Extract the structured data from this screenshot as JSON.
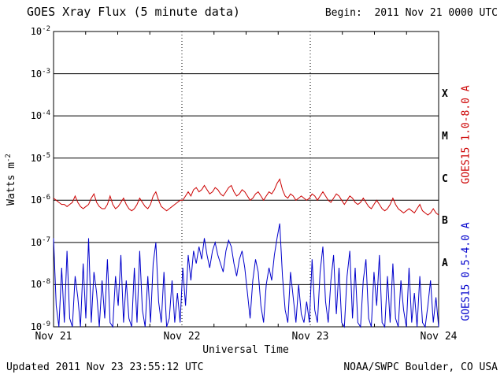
{
  "header": {
    "title": "GOES Xray Flux (5 minute data)",
    "begin_label": "Begin:  2011 Nov 21 0000 UTC"
  },
  "footer": {
    "updated": "Updated 2011 Nov 23 23:55:12 UTC",
    "source": "NOAA/SWPC Boulder, CO USA"
  },
  "chart_data": {
    "type": "line",
    "title": "GOES Xray Flux (5 minute data)",
    "xlabel": "Universal Time",
    "ylabel": "Watts m^-2",
    "y_scale": "log10",
    "ylim_log10": [
      -9,
      -2
    ],
    "y_ticks_log10": [
      -2,
      -3,
      -4,
      -5,
      -6,
      -7,
      -8,
      -9
    ],
    "xlim_days": [
      0,
      3
    ],
    "x_ticks": [
      "Nov 21",
      "Nov 22",
      "Nov 23",
      "Nov 24"
    ],
    "x_tick_days": [
      0,
      1,
      2,
      3
    ],
    "grid": {
      "horizontal": "solid",
      "day_boundaries": "dotted"
    },
    "class_bands": [
      {
        "label": "X",
        "log10_mid": -3.5
      },
      {
        "label": "M",
        "log10_mid": -4.5
      },
      {
        "label": "C",
        "log10_mid": -5.5
      },
      {
        "label": "B",
        "log10_mid": -6.5
      },
      {
        "label": "A",
        "log10_mid": -7.5
      }
    ],
    "series": [
      {
        "name": "GOES15 1.0-8.0 A",
        "color": "#cc0000",
        "sample_interval_hours": 0.5,
        "y_log10": [
          -5.95,
          -6.0,
          -6.05,
          -6.1,
          -6.1,
          -6.15,
          -6.1,
          -6.05,
          -5.9,
          -6.05,
          -6.15,
          -6.2,
          -6.15,
          -6.1,
          -5.95,
          -5.85,
          -6.05,
          -6.15,
          -6.2,
          -6.2,
          -6.1,
          -5.9,
          -6.1,
          -6.2,
          -6.15,
          -6.05,
          -5.95,
          -6.1,
          -6.2,
          -6.25,
          -6.2,
          -6.1,
          -5.95,
          -6.05,
          -6.15,
          -6.2,
          -6.1,
          -5.9,
          -5.8,
          -6.0,
          -6.15,
          -6.2,
          -6.25,
          -6.2,
          -6.15,
          -6.1,
          -6.05,
          -6.0,
          -6.0,
          -5.9,
          -5.8,
          -5.9,
          -5.75,
          -5.7,
          -5.8,
          -5.75,
          -5.65,
          -5.75,
          -5.85,
          -5.8,
          -5.7,
          -5.75,
          -5.85,
          -5.9,
          -5.8,
          -5.7,
          -5.65,
          -5.8,
          -5.9,
          -5.85,
          -5.75,
          -5.8,
          -5.9,
          -6.0,
          -5.95,
          -5.85,
          -5.8,
          -5.9,
          -6.0,
          -5.9,
          -5.8,
          -5.85,
          -5.75,
          -5.6,
          -5.5,
          -5.75,
          -5.9,
          -5.95,
          -5.85,
          -5.9,
          -6.0,
          -5.95,
          -5.9,
          -5.95,
          -6.0,
          -5.95,
          -5.85,
          -5.9,
          -6.0,
          -5.9,
          -5.8,
          -5.9,
          -6.0,
          -6.05,
          -5.95,
          -5.85,
          -5.9,
          -6.0,
          -6.1,
          -6.0,
          -5.9,
          -5.95,
          -6.05,
          -6.1,
          -6.05,
          -5.95,
          -6.05,
          -6.15,
          -6.2,
          -6.1,
          -6.0,
          -6.1,
          -6.2,
          -6.25,
          -6.2,
          -6.1,
          -5.95,
          -6.1,
          -6.2,
          -6.25,
          -6.3,
          -6.25,
          -6.2,
          -6.25,
          -6.3,
          -6.2,
          -6.1,
          -6.25,
          -6.3,
          -6.35,
          -6.3,
          -6.2,
          -6.3,
          -6.35
        ]
      },
      {
        "name": "GOES15 0.5-4.0 A",
        "color": "#0000cc",
        "sample_interval_hours": 0.5,
        "y_log10": [
          -6.9,
          -8.5,
          -9.0,
          -7.6,
          -8.9,
          -7.2,
          -8.8,
          -9.0,
          -7.8,
          -8.3,
          -9.0,
          -7.5,
          -8.8,
          -6.9,
          -8.9,
          -7.7,
          -8.2,
          -9.0,
          -7.9,
          -8.8,
          -7.4,
          -8.9,
          -9.0,
          -7.8,
          -8.5,
          -7.3,
          -8.9,
          -7.9,
          -8.8,
          -9.0,
          -7.6,
          -8.9,
          -7.2,
          -8.6,
          -9.0,
          -7.8,
          -8.9,
          -7.5,
          -7.0,
          -8.4,
          -8.9,
          -7.7,
          -9.0,
          -8.8,
          -7.9,
          -8.9,
          -8.2,
          -8.9,
          -7.6,
          -8.5,
          -7.3,
          -7.9,
          -7.2,
          -7.5,
          -7.1,
          -7.4,
          -6.9,
          -7.3,
          -7.6,
          -7.2,
          -7.0,
          -7.3,
          -7.5,
          -7.7,
          -7.2,
          -6.95,
          -7.1,
          -7.5,
          -7.8,
          -7.4,
          -7.2,
          -7.6,
          -8.2,
          -8.8,
          -7.9,
          -7.4,
          -7.7,
          -8.5,
          -8.9,
          -8.0,
          -7.6,
          -7.9,
          -7.3,
          -6.9,
          -6.55,
          -7.8,
          -8.6,
          -8.9,
          -7.7,
          -8.3,
          -8.9,
          -8.0,
          -8.7,
          -8.9,
          -8.4,
          -8.9,
          -7.4,
          -8.6,
          -8.9,
          -7.7,
          -7.1,
          -8.4,
          -8.9,
          -7.9,
          -7.3,
          -8.7,
          -7.6,
          -8.9,
          -9.0,
          -7.8,
          -7.2,
          -8.8,
          -7.6,
          -8.9,
          -9.0,
          -7.9,
          -7.4,
          -8.8,
          -9.0,
          -7.7,
          -8.5,
          -7.3,
          -8.9,
          -9.0,
          -7.8,
          -8.9,
          -7.5,
          -8.8,
          -9.0,
          -7.9,
          -8.6,
          -9.0,
          -7.6,
          -8.9,
          -8.2,
          -9.0,
          -7.8,
          -8.9,
          -9.0,
          -8.5,
          -7.9,
          -8.9,
          -8.3,
          -9.0
        ]
      }
    ]
  }
}
